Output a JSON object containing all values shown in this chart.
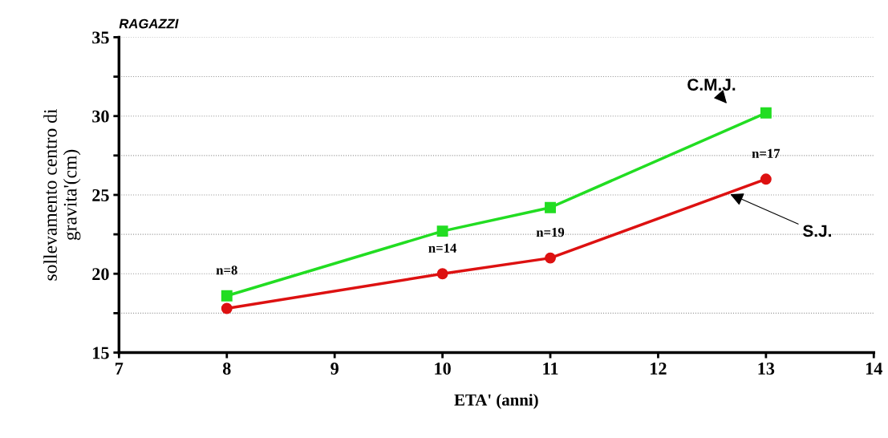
{
  "chart_data": {
    "type": "line",
    "title": "RAGAZZI",
    "xlabel": "ETA' (anni)",
    "ylabel": "sollevamento centro di\ngravita'(cm)",
    "x": [
      8,
      10,
      11,
      13
    ],
    "series": [
      {
        "name": "C.M.J.",
        "color": "#22dd22",
        "marker": "square",
        "values": [
          18.6,
          22.7,
          24.2,
          30.2
        ]
      },
      {
        "name": "S.J.",
        "color": "#dd1111",
        "marker": "circle",
        "values": [
          17.8,
          20.0,
          21.0,
          26.0
        ]
      }
    ],
    "annotations": [
      "n=8",
      "n=14",
      "n=19",
      "n=17"
    ],
    "xlim": [
      7,
      14
    ],
    "xticks": [
      7,
      8,
      9,
      10,
      11,
      12,
      13,
      14
    ],
    "ylim": [
      15,
      35
    ],
    "yticks": [
      15,
      {
        "value": 17.5,
        "label": null
      },
      20,
      {
        "value": 22.5,
        "label": null
      },
      25,
      {
        "value": 27.5,
        "label": null
      },
      30,
      {
        "value": 32.5,
        "label": null
      },
      35
    ],
    "grid": "y",
    "legend": false,
    "line_style": "solid"
  }
}
